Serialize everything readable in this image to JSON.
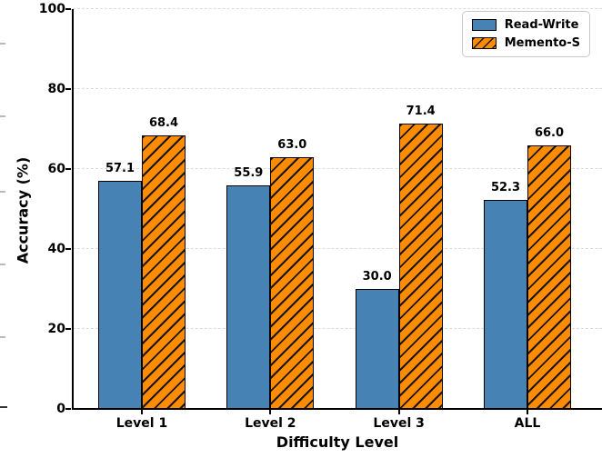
{
  "chart_data": {
    "type": "bar",
    "xlabel": "Difficulty Level",
    "ylabel": "Accuracy (%)",
    "categories": [
      "Level 1",
      "Level 2",
      "Level 3",
      "ALL"
    ],
    "series": [
      {
        "name": "Read-Write",
        "color": "#4682B4",
        "hatch": "",
        "values": [
          57.1,
          55.9,
          30.0,
          52.3
        ],
        "labels": [
          "57.1",
          "55.9",
          "30.0",
          "52.3"
        ]
      },
      {
        "name": "Memento-S",
        "color": "#FF8C00",
        "hatch": "/",
        "hatch_color": "#161616",
        "values": [
          68.4,
          63.0,
          71.4,
          66.0
        ],
        "labels": [
          "68.4",
          "63.0",
          "71.4",
          "66.0"
        ]
      }
    ],
    "ylim": [
      0,
      100
    ],
    "yticks": [
      0,
      20,
      40,
      60,
      80,
      100
    ],
    "ytick_labels": [
      "0",
      "20",
      "40",
      "60",
      "80",
      "100"
    ],
    "grid": "horizontal-dashed",
    "legend": {
      "position": "upper-right",
      "entries": [
        "Read-Write",
        "Memento-S"
      ]
    },
    "bar_value_labels": true,
    "edge_color": "#000000"
  }
}
